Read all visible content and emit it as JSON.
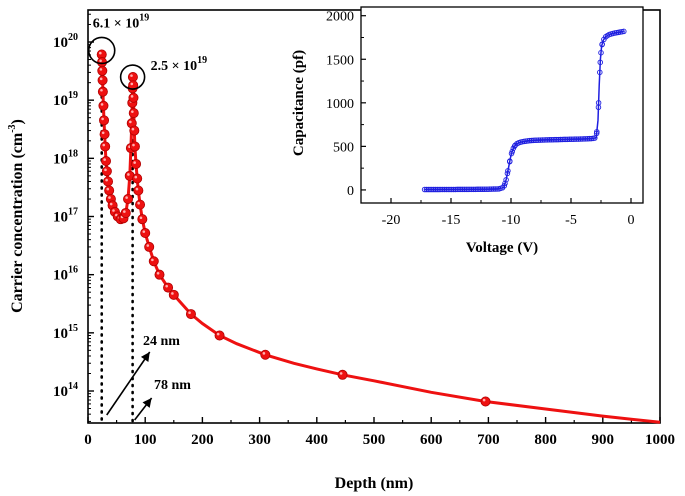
{
  "chart_data": [
    {
      "type": "line",
      "name": "main-profile",
      "xlabel": "Depth (nm)",
      "ylabel_text": "Carrier concentration (cm",
      "ylabel_sup": "-3",
      "ylabel_end": ")",
      "xlim": [
        0,
        1000
      ],
      "ylim_log10": [
        13.45,
        20.55
      ],
      "scale": "log",
      "x_ticks": [
        0,
        100,
        200,
        300,
        400,
        500,
        600,
        700,
        800,
        900,
        1000
      ],
      "x_tick_labels": [
        "0",
        "100",
        "200",
        "300",
        "400",
        "500",
        "600",
        "700",
        "800",
        "900",
        "1000"
      ],
      "y_ticks_log10": [
        14,
        15,
        16,
        17,
        18,
        19,
        20
      ],
      "y_tick_base": "10",
      "y_tick_exps": [
        "14",
        "15",
        "16",
        "17",
        "18",
        "19",
        "20"
      ],
      "color": "#ee1111",
      "series": [
        {
          "name": "carrier-concentration",
          "x": [
            24,
            24.5,
            25,
            25.5,
            26,
            27,
            28,
            29,
            30,
            31.5,
            33,
            35,
            37,
            40,
            43,
            47,
            52,
            57,
            62,
            66,
            70,
            73,
            75,
            76.5,
            77.5,
            78,
            78.5,
            79,
            79.5,
            80,
            81,
            82,
            84,
            86,
            88,
            91,
            95,
            100,
            107,
            115,
            125,
            140,
            150,
            160,
            180,
            200,
            230,
            260,
            310,
            360,
            400,
            445,
            500,
            600,
            695,
            800,
            900,
            1000
          ],
          "y": [
            6.1e+19,
            4.5e+19,
            3.2e+19,
            2.2e+19,
            1.4e+19,
            8e+18,
            4.5e+18,
            2.6e+18,
            1.6e+18,
            9e+17,
            6e+17,
            4e+17,
            2.8e+17,
            2e+17,
            1.55e+17,
            1.2e+17,
            1e+17,
            9e+16,
            9.3e+16,
            1.15e+17,
            2e+17,
            5e+17,
            1.5e+18,
            4e+18,
            9e+18,
            1.6e+19,
            2.5e+19,
            1.8e+19,
            1.1e+19,
            6e+18,
            3e+18,
            1.6e+18,
            8e+17,
            4.5e+17,
            2.8e+17,
            1.6e+17,
            9e+16,
            5.2e+16,
            3e+16,
            1.7e+16,
            1e+16,
            6000000000000000.0,
            4500000000000000.0,
            3500000000000000.0,
            2100000000000000.0,
            1450000000000000.0,
            900000000000000.0,
            650000000000000.0,
            420000000000000.0,
            300000000000000.0,
            240000000000000.0,
            190000000000000.0,
            150000000000000.0,
            95000000000000.0,
            66000000000000.0,
            49000000000000.0,
            37000000000000.0,
            29000000000000.0
          ]
        }
      ],
      "markers_x": [
        24,
        24.5,
        25,
        25.5,
        26,
        27,
        28,
        29,
        30,
        31.5,
        33,
        35,
        37,
        40,
        43,
        47,
        52,
        57,
        62,
        66,
        70,
        73,
        75,
        76.5,
        77.5,
        78,
        78.5,
        79,
        79.5,
        80,
        81,
        82,
        84,
        86,
        88,
        91,
        95,
        100,
        107,
        115,
        125,
        140,
        150,
        180,
        230,
        310,
        445,
        695
      ],
      "annotations": {
        "peak1": {
          "mantissa": "6.1 × 10",
          "exp": "19",
          "x": 24,
          "y": 6.1e+19
        },
        "peak2": {
          "mantissa": "2.5 × 10",
          "exp": "19",
          "x": 78,
          "y": 2.5e+19
        },
        "depth1": {
          "label": "24 nm",
          "x": 24
        },
        "depth2": {
          "label": "78 nm",
          "x": 78
        }
      }
    },
    {
      "type": "scatter",
      "name": "inset-cv",
      "xlabel": "Voltage (V)",
      "ylabel": "Capacitance (pf)",
      "xlim": [
        -22.5,
        1
      ],
      "ylim": [
        -150,
        2100
      ],
      "x_ticks": [
        -20,
        -15,
        -10,
        -5,
        0
      ],
      "x_tick_labels": [
        "-20",
        "-15",
        "-10",
        "-5",
        "0"
      ],
      "y_ticks": [
        0,
        500,
        1000,
        1500,
        2000
      ],
      "y_tick_labels": [
        "0",
        "500",
        "1000",
        "1500",
        "2000"
      ],
      "color": "#1f1fe0",
      "series": [
        {
          "name": "capacitance",
          "x": [
            -17.2,
            -16,
            -14,
            -12,
            -11,
            -10.6,
            -10.4,
            -10.2,
            -10.0,
            -9.8,
            -9.6,
            -9.3,
            -9.0,
            -8.5,
            -8.0,
            -7,
            -6,
            -5,
            -4,
            -3.2,
            -2.9,
            -2.75,
            -2.65,
            -2.55,
            -2.45,
            -2.3,
            -2.1,
            -1.8,
            -1.4,
            -1.0,
            -0.6
          ],
          "y": [
            5,
            5,
            6,
            8,
            12,
            30,
            120,
            260,
            400,
            480,
            525,
            545,
            555,
            565,
            570,
            575,
            578,
            582,
            585,
            590,
            600,
            800,
            1200,
            1500,
            1650,
            1720,
            1760,
            1785,
            1800,
            1810,
            1820
          ]
        }
      ]
    }
  ]
}
